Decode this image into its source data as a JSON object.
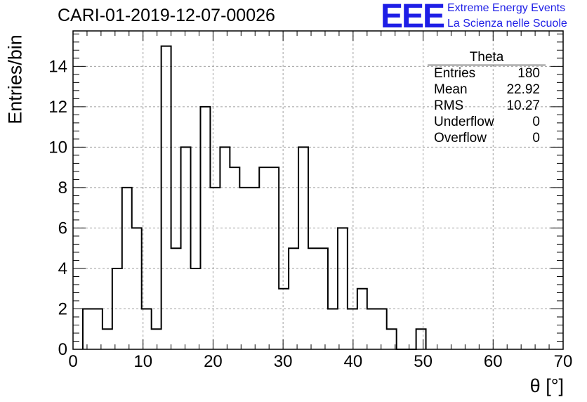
{
  "header": {
    "title": "CARI-01-2019-12-07-00026",
    "logo_text": "EEE",
    "logo_line1": "Extreme Energy Events",
    "logo_line2": "La Scienza nelle Scuole",
    "brand_color": "#1e1ee6"
  },
  "stats": {
    "title": "Theta",
    "rows": [
      {
        "label": "Entries",
        "value": "180"
      },
      {
        "label": "Mean",
        "value": "22.92"
      },
      {
        "label": "RMS",
        "value": "10.27"
      },
      {
        "label": "Underflow",
        "value": "0"
      },
      {
        "label": "Overflow",
        "value": "0"
      }
    ]
  },
  "chart_data": {
    "type": "histogram",
    "title": "CARI-01-2019-12-07-00026",
    "xlabel": "θ [°]",
    "ylabel": "Entries/bin",
    "xlim": [
      0,
      70
    ],
    "ylim": [
      0,
      15.75
    ],
    "x_ticks": [
      0,
      10,
      20,
      30,
      40,
      50,
      60,
      70
    ],
    "y_ticks": [
      0,
      2,
      4,
      6,
      8,
      10,
      12,
      14
    ],
    "grid": true,
    "bin_width": 1.4,
    "bins_start": 1.4,
    "values": [
      2,
      2,
      1,
      4,
      8,
      6,
      2,
      1,
      15,
      5,
      10,
      4,
      12,
      8,
      10,
      9,
      8,
      8,
      9,
      9,
      3,
      5,
      10,
      5,
      5,
      2,
      6,
      2,
      3,
      2,
      2,
      1,
      0,
      0,
      1
    ]
  }
}
